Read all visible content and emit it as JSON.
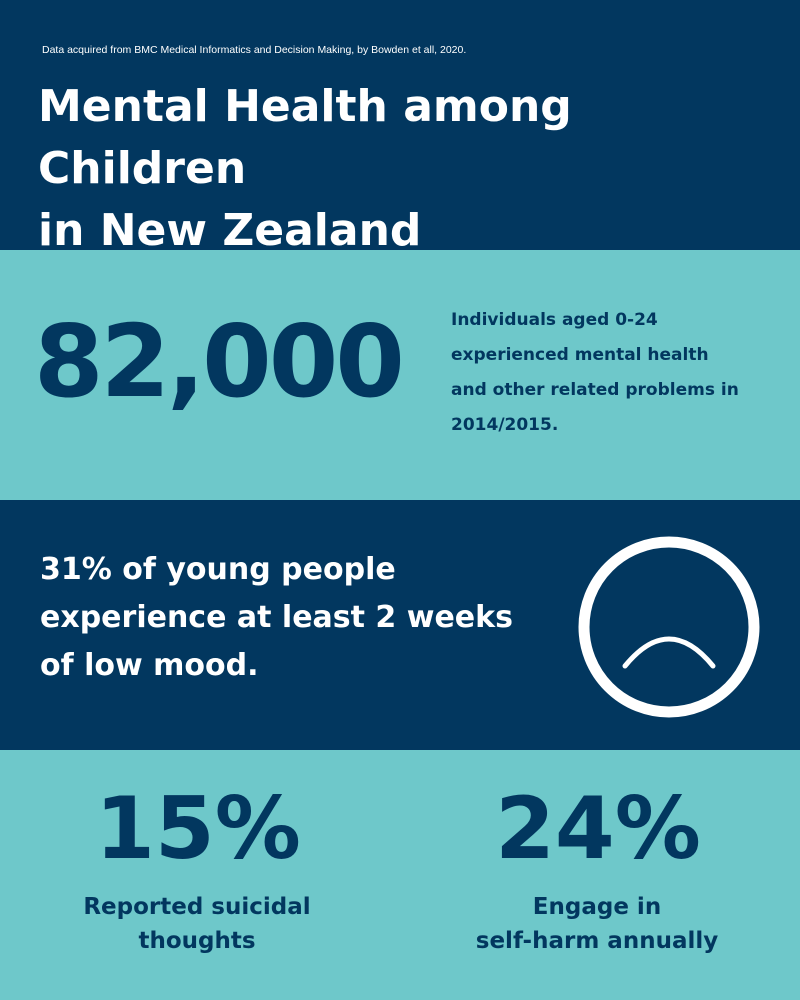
{
  "header": {
    "source": "Data acquired from BMC Medical Informatics and Decision Making, by Bowden et all, 2020.",
    "title_line1": "Mental Health among Children",
    "title_line2": "in New Zealand"
  },
  "stat_individuals": {
    "value": "82,000",
    "lines": [
      "Individuals aged 0-24",
      "experienced mental health",
      "and other related problems in",
      "2014/2015."
    ]
  },
  "stat_low_mood": {
    "lines": [
      "31% of young people",
      "experience at least 2 weeks",
      "of low mood."
    ],
    "icon": "sad-face-icon"
  },
  "stat_suicidal": {
    "value": "15%",
    "caption_line1": "Reported suicidal",
    "caption_line2": "thoughts"
  },
  "stat_selfharm": {
    "value": "24%",
    "caption_line1": "Engage in",
    "caption_line2": "self-harm annually"
  },
  "colors": {
    "dark_band": "#02375f",
    "light_band": "#6ec8ca",
    "light_text": "#ffffff",
    "dark_text": "#02375f"
  }
}
